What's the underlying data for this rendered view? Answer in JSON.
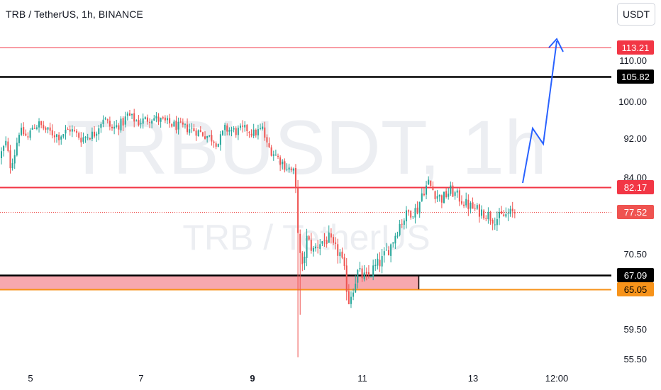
{
  "header": {
    "title": "TRB / TetherUS, 1h, BINANCE",
    "currency_button": "USDT"
  },
  "watermark": {
    "symbol": "TRBUSDT, 1h",
    "description": "TRB / TetherUS"
  },
  "colors": {
    "up": "#26a69a",
    "down": "#ef5350",
    "red_line": "#f23645",
    "black_line": "#000000",
    "orange_line": "#f7931a",
    "zone_fill": "#f7a8ae",
    "arrow": "#2962ff",
    "watermark": "#eceef2"
  },
  "chart_data": {
    "type": "candlestick",
    "title": "TRB / TetherUS, 1h, BINANCE",
    "y_axis": {
      "range": [
        55.5,
        122.0
      ],
      "ticks": [
        "55.50",
        "59.50",
        "70.50",
        "84.00",
        "92.00",
        "100.00",
        "110.00"
      ]
    },
    "x_axis": {
      "ticks": [
        "5",
        "7",
        "9",
        "11",
        "13",
        "12:00"
      ],
      "bold_ticks": [
        "9"
      ]
    },
    "price_lines": [
      {
        "label": "113.21",
        "value": 113.21,
        "style": "thin-red"
      },
      {
        "label": "105.82",
        "value": 105.82,
        "style": "black"
      },
      {
        "label": "82.17",
        "value": 82.17,
        "style": "red"
      },
      {
        "label": "77.52",
        "value": 77.52,
        "style": "dotted-red-current"
      },
      {
        "label": "67.09",
        "value": 67.09,
        "style": "black"
      },
      {
        "label": "65.05",
        "value": 65.05,
        "style": "orange"
      }
    ],
    "zone": {
      "from": 65.05,
      "to": 67.09
    },
    "projection_arrow": [
      [
        82.5,
        "Day 13"
      ],
      [
        95.0,
        ""
      ],
      [
        91.0,
        ""
      ],
      [
        116.0,
        ""
      ]
    ],
    "segments": [
      [
        0.0,
        88.0
      ],
      [
        3.0,
        91.0
      ],
      [
        5.0,
        86.5
      ],
      [
        7.0,
        89.0
      ],
      [
        9.0,
        93.5
      ],
      [
        10.5,
        93.0
      ],
      [
        12.5,
        92.0
      ],
      [
        14.5,
        94.5
      ],
      [
        17.0,
        95.0
      ],
      [
        21.0,
        93.5
      ],
      [
        26.0,
        92.5
      ],
      [
        31.0,
        94.0
      ],
      [
        36.0,
        92.0
      ],
      [
        42.0,
        93.0
      ],
      [
        46.0,
        96.5
      ],
      [
        50.0,
        94.0
      ],
      [
        55.0,
        95.5
      ],
      [
        57.0,
        97.0
      ],
      [
        62.0,
        95.5
      ],
      [
        68.0,
        96.5
      ],
      [
        74.0,
        95.5
      ],
      [
        80.0,
        94.5
      ],
      [
        86.0,
        94.0
      ],
      [
        91.0,
        93.0
      ],
      [
        95.0,
        92.0
      ],
      [
        98.0,
        91.0
      ],
      [
        101.0,
        94.0
      ],
      [
        106.0,
        93.5
      ],
      [
        111.0,
        94.0
      ],
      [
        114.0,
        93.0
      ],
      [
        118.0,
        94.0
      ],
      [
        120.0,
        90.5
      ],
      [
        124.0,
        88.5
      ],
      [
        128.0,
        86.5
      ],
      [
        132.0,
        85.0
      ],
      [
        133.0,
        81.5
      ],
      [
        134.0,
        74.0
      ],
      [
        135.0,
        70.0
      ],
      [
        136.0,
        68.0
      ],
      [
        138.0,
        73.0
      ],
      [
        141.0,
        71.0
      ],
      [
        144.0,
        72.5
      ],
      [
        148.0,
        73.0
      ],
      [
        150.0,
        71.5
      ],
      [
        153.0,
        70.5
      ],
      [
        155.0,
        67.5
      ],
      [
        157.0,
        63.5
      ],
      [
        159.0,
        65.5
      ],
      [
        161.0,
        67.5
      ],
      [
        165.0,
        66.5
      ],
      [
        168.0,
        68.0
      ],
      [
        172.0,
        69.5
      ],
      [
        176.0,
        72.0
      ],
      [
        180.0,
        75.5
      ],
      [
        184.0,
        77.5
      ],
      [
        188.0,
        78.0
      ],
      [
        190.0,
        81.0
      ],
      [
        193.0,
        83.0
      ],
      [
        196.0,
        81.0
      ],
      [
        199.0,
        80.0
      ],
      [
        203.0,
        81.5
      ],
      [
        206.0,
        80.5
      ],
      [
        210.0,
        79.0
      ],
      [
        214.0,
        78.0
      ],
      [
        218.0,
        77.5
      ],
      [
        222.0,
        76.5
      ],
      [
        225.0,
        76.5
      ],
      [
        228.0,
        77.0
      ],
      [
        232.0,
        77.5
      ]
    ]
  }
}
